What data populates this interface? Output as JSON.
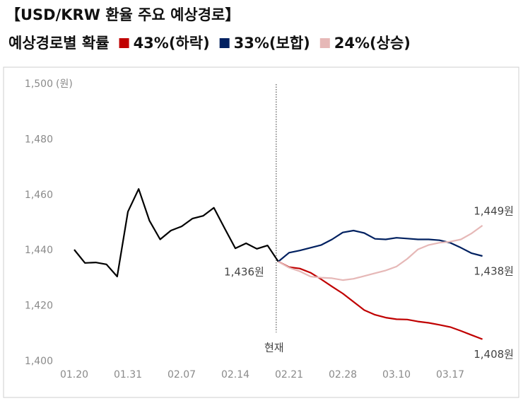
{
  "chart_data": {
    "type": "line",
    "title": "【USD/KRW 환율 주요 예상경로】",
    "legend_title": "예상경로별 확률",
    "y_unit": "(원)",
    "now_label": "현재",
    "categories": [
      "01.20",
      null,
      null,
      null,
      null,
      "01.31",
      null,
      null,
      null,
      null,
      "02.07",
      null,
      null,
      null,
      null,
      "02.14",
      null,
      null,
      null,
      null,
      "02.21",
      null,
      null,
      null,
      null,
      "02.28",
      null,
      null,
      null,
      null,
      "03.10",
      null,
      null,
      null,
      null,
      "03.17",
      null,
      null,
      null
    ],
    "ylim": [
      1400,
      1500
    ],
    "yticks": [
      {
        "value": 1400,
        "label": "1,400"
      },
      {
        "value": 1420,
        "label": "1,420"
      },
      {
        "value": 1440,
        "label": "1,440"
      },
      {
        "value": 1460,
        "label": "1,460"
      },
      {
        "value": 1480,
        "label": "1,480"
      },
      {
        "value": 1500,
        "label": "1,500"
      }
    ],
    "grid": false,
    "series": [
      {
        "color": "#000000",
        "values": [
          1440.3,
          1435.5,
          1435.7,
          1435,
          1430.6,
          1454,
          1462.2,
          1450.8,
          1444,
          1447.2,
          1448.7,
          1451.5,
          1452.5,
          1455.4,
          1448,
          1440.8,
          1442.6,
          1440.6,
          1441.8,
          1436,
          null,
          null,
          null,
          null,
          null,
          null,
          null,
          null,
          null,
          null,
          null,
          null,
          null,
          null,
          null,
          null,
          null,
          null,
          null
        ],
        "value_labels": [
          null,
          null,
          null,
          null,
          null,
          null,
          null,
          null,
          null,
          null,
          null,
          null,
          null,
          null,
          null,
          null,
          null,
          null,
          null,
          "1,436원",
          null,
          null,
          null,
          null,
          null,
          null,
          null,
          null,
          null,
          null,
          null,
          null,
          null,
          null,
          null,
          null,
          null,
          null,
          null
        ]
      },
      {
        "name": "43%(하락)",
        "color": "#c00000",
        "values": [
          null,
          null,
          null,
          null,
          null,
          null,
          null,
          null,
          null,
          null,
          null,
          null,
          null,
          null,
          null,
          null,
          null,
          null,
          null,
          1436,
          1434,
          1433.5,
          1432,
          1429.6,
          1427,
          1424.5,
          1421.5,
          1418.5,
          1416.8,
          1415.8,
          1415.2,
          1415.1,
          1414.4,
          1413.9,
          1413.2,
          1412.4,
          1411,
          1409.5,
          1408
        ],
        "value_labels": [
          null,
          null,
          null,
          null,
          null,
          null,
          null,
          null,
          null,
          null,
          null,
          null,
          null,
          null,
          null,
          null,
          null,
          null,
          null,
          null,
          null,
          null,
          null,
          null,
          null,
          null,
          null,
          null,
          null,
          null,
          null,
          null,
          null,
          null,
          null,
          null,
          null,
          null,
          "1,408원"
        ]
      },
      {
        "name": "33%(보합)",
        "color": "#002060",
        "values": [
          null,
          null,
          null,
          null,
          null,
          null,
          null,
          null,
          null,
          null,
          null,
          null,
          null,
          null,
          null,
          null,
          null,
          null,
          null,
          1436,
          1439.2,
          1440,
          1441,
          1442,
          1444,
          1446.5,
          1447.2,
          1446.3,
          1444.2,
          1444,
          1444.6,
          1444.3,
          1444,
          1444,
          1443.7,
          1442.8,
          1441,
          1439,
          1438
        ],
        "value_labels": [
          null,
          null,
          null,
          null,
          null,
          null,
          null,
          null,
          null,
          null,
          null,
          null,
          null,
          null,
          null,
          null,
          null,
          null,
          null,
          null,
          null,
          null,
          null,
          null,
          null,
          null,
          null,
          null,
          null,
          null,
          null,
          null,
          null,
          null,
          null,
          null,
          null,
          null,
          "1,438원"
        ]
      },
      {
        "name": "24%(상승)",
        "color": "#e6b8b7",
        "values": [
          null,
          null,
          null,
          null,
          null,
          null,
          null,
          null,
          null,
          null,
          null,
          null,
          null,
          null,
          null,
          null,
          null,
          null,
          null,
          1436,
          1433.8,
          1432.5,
          1430.6,
          1430.2,
          1430,
          1429.3,
          1429.8,
          1430.8,
          1431.8,
          1432.8,
          1434.2,
          1437,
          1440.4,
          1442,
          1442.8,
          1443.2,
          1444,
          1446.2,
          1449
        ],
        "value_labels": [
          null,
          null,
          null,
          null,
          null,
          null,
          null,
          null,
          null,
          null,
          null,
          null,
          null,
          null,
          null,
          null,
          null,
          null,
          null,
          null,
          null,
          null,
          null,
          null,
          null,
          null,
          null,
          null,
          null,
          null,
          null,
          null,
          null,
          null,
          null,
          null,
          null,
          null,
          "1,449원"
        ]
      }
    ]
  }
}
